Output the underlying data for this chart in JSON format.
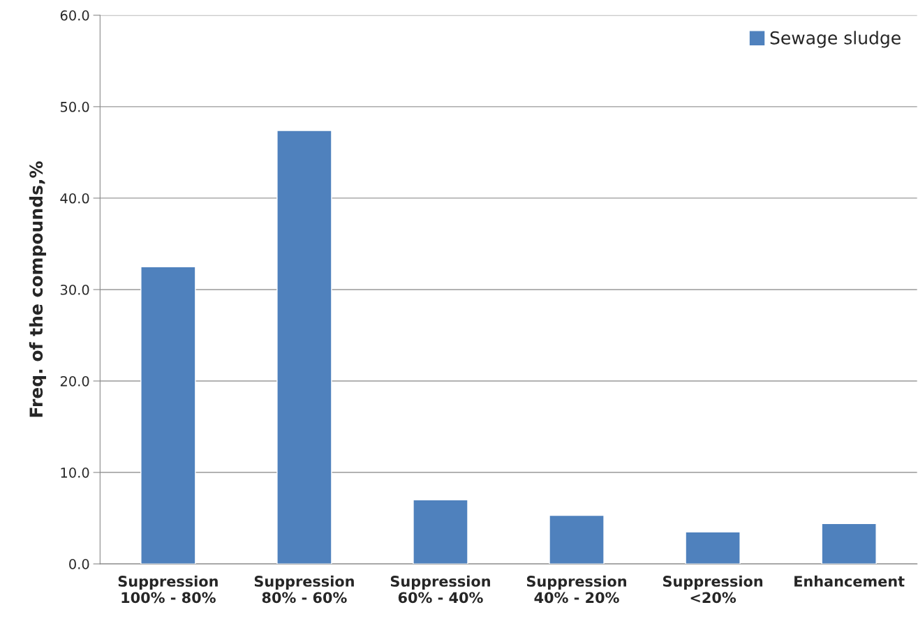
{
  "chart_data": {
    "type": "bar",
    "ylabel": "Freq. of the compounds,%",
    "categories": [
      "Suppression\n100% - 80%",
      "Suppression\n80% - 60%",
      "Suppression\n60% - 40%",
      "Suppression\n40% - 20%",
      "Suppression\n<20%",
      "Enhancement"
    ],
    "series": [
      {
        "name": "Sewage sludge",
        "color": "#4f81bd",
        "values": [
          32.5,
          47.4,
          7.0,
          5.3,
          3.5,
          4.4
        ]
      }
    ],
    "ylim": [
      0,
      60
    ],
    "yticks": [
      {
        "value": 0,
        "label": "0.0"
      },
      {
        "value": 10,
        "label": "10.0"
      },
      {
        "value": 20,
        "label": "20.0"
      },
      {
        "value": 30,
        "label": "30.0"
      },
      {
        "value": 40,
        "label": "40.0"
      },
      {
        "value": 50,
        "label": "50.0"
      },
      {
        "value": 60,
        "label": "60.0"
      }
    ],
    "grid": "y",
    "legend": "top right"
  }
}
